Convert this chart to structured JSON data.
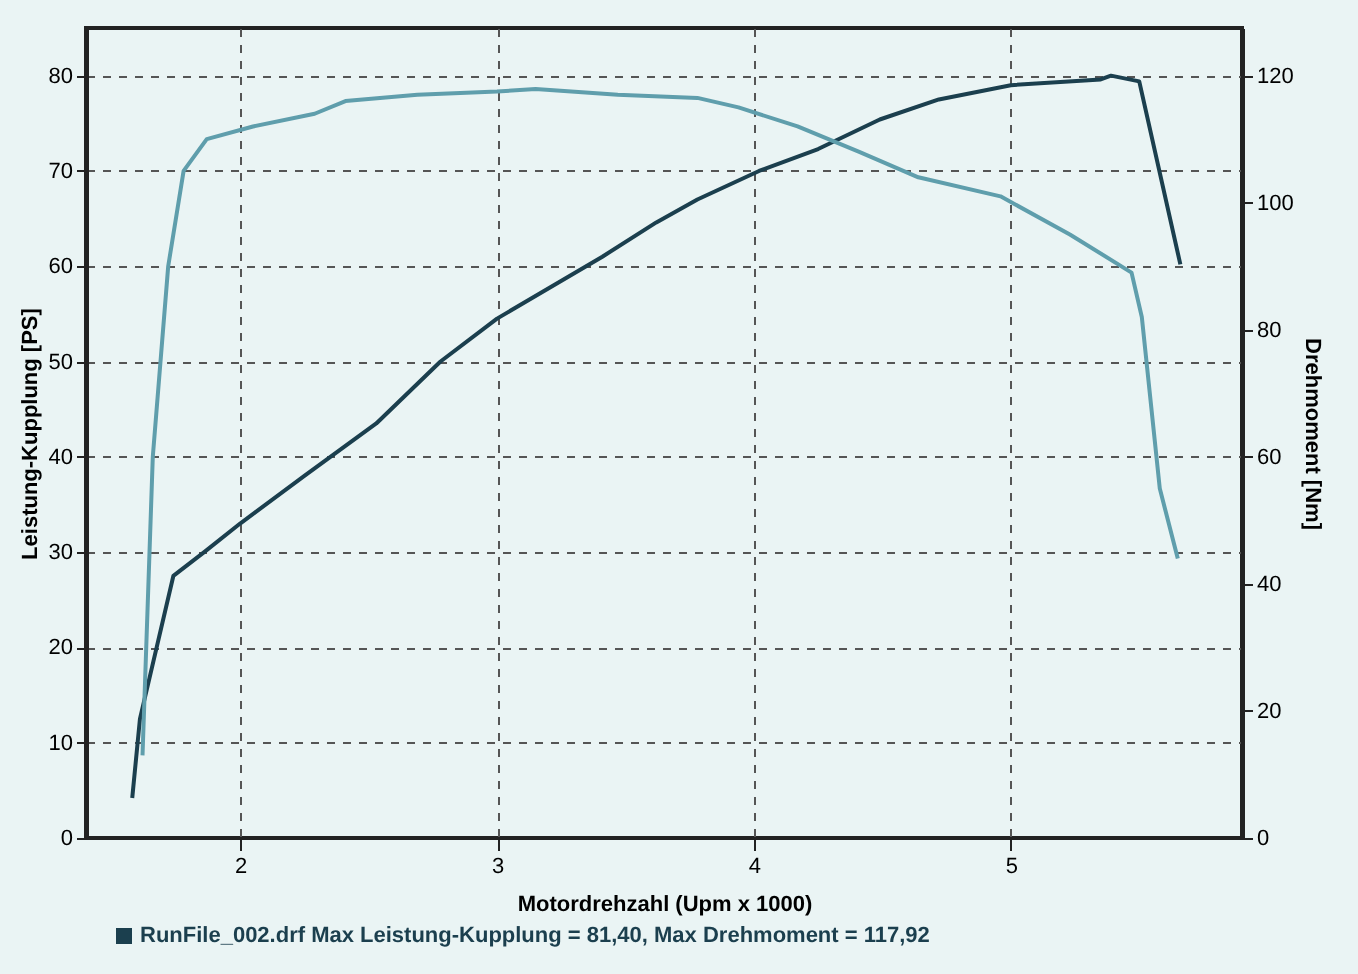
{
  "chart_data": {
    "type": "line",
    "xlabel": "Motordrehzahl (Upm x 1000)",
    "ylabel": "Leistung-Kupplung [PS]",
    "y2label": "Drehmoment [Nm]",
    "xlim": [
      1.4,
      5.9
    ],
    "xticks": [
      2,
      3,
      4,
      5
    ],
    "ylim": [
      0,
      85
    ],
    "yticks": [
      0,
      10,
      20,
      30,
      40,
      50,
      60,
      70,
      80
    ],
    "y2lim": [
      0,
      127.5
    ],
    "y2ticks": [
      0,
      20,
      40,
      60,
      80,
      100,
      120
    ],
    "grid": true,
    "line_style": "solid",
    "marker": "none",
    "series": [
      {
        "color": "#1b3f4e",
        "x": [
          1.58,
          1.61,
          1.74,
          1.86,
          2.0,
          2.25,
          2.53,
          2.78,
          3.0,
          3.41,
          3.62,
          3.78,
          4.02,
          4.25,
          4.49,
          4.72,
          5.0,
          5.35,
          5.39,
          5.5,
          5.66
        ],
        "values": [
          4.2,
          12.5,
          27.5,
          30,
          33,
          38,
          43.5,
          50,
          54.5,
          61,
          64.6,
          67,
          70,
          72.3,
          75.4,
          77.5,
          79,
          79.6,
          80,
          79.4,
          60.2
        ]
      },
      {
        "color": "#5f9eac",
        "axis": "y2",
        "x": [
          1.62,
          1.66,
          1.72,
          1.78,
          1.87,
          2.05,
          2.29,
          2.41,
          2.69,
          3.0,
          3.15,
          3.47,
          3.78,
          3.94,
          4.17,
          4.41,
          4.64,
          4.96,
          5.23,
          5.47,
          5.51,
          5.58,
          5.65
        ],
        "values": [
          13,
          60,
          90,
          105,
          110,
          112,
          114,
          116,
          117,
          117.5,
          117.9,
          117,
          116.5,
          115,
          112,
          108,
          104,
          101,
          95,
          89,
          82,
          55,
          44
        ]
      }
    ],
    "annotations": [
      "RunFile_002.drf Max Leistung-Kupplung = 81,40, Max Drehmoment = 117,92"
    ]
  }
}
